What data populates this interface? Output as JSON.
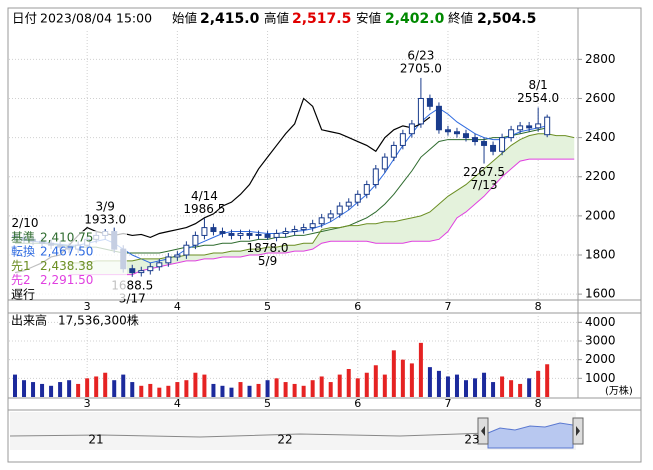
{
  "header": {
    "date_label": "日付",
    "date": "2023/08/04 15:00",
    "open_label": "始値",
    "open": "2,415.0",
    "high_label": "高値",
    "high": "2,517.5",
    "low_label": "安値",
    "low": "2,402.0",
    "close_label": "終値",
    "close": "2,504.5"
  },
  "navigator": {
    "labels": [
      "21",
      "22",
      "23"
    ]
  },
  "chart_data": [
    {
      "type": "candlestick",
      "categories": [
        null,
        null,
        null,
        null,
        null,
        null,
        null,
        null,
        "3",
        null,
        null,
        null,
        null,
        null,
        null,
        null,
        null,
        null,
        "4",
        null,
        null,
        null,
        null,
        null,
        null,
        null,
        null,
        null,
        "5",
        null,
        null,
        null,
        null,
        null,
        null,
        null,
        null,
        null,
        "6",
        null,
        null,
        null,
        null,
        null,
        null,
        null,
        null,
        null,
        "7",
        null,
        null,
        null,
        null,
        null,
        null,
        null,
        null,
        null,
        "8",
        null,
        null,
        null,
        null
      ],
      "open": [
        1900,
        1890,
        1880,
        1870,
        1860,
        1850,
        1840,
        1830,
        1850,
        1880,
        1900,
        1920,
        1830,
        1730,
        1710,
        1720,
        1740,
        1760,
        1790,
        1800,
        1850,
        1900,
        1940,
        1920,
        1910,
        1900,
        1910,
        1900,
        1905,
        1890,
        1910,
        1920,
        1930,
        1940,
        1960,
        1990,
        2010,
        2050,
        2070,
        2110,
        2160,
        2240,
        2300,
        2360,
        2420,
        2470,
        2600,
        2560,
        2440,
        2430,
        2420,
        2400,
        2380,
        2360,
        2330,
        2400,
        2440,
        2460,
        2450,
        2415,
        null,
        null,
        null
      ],
      "high": [
        1920,
        1910,
        1900,
        1890,
        1880,
        1870,
        1860,
        1870,
        1900,
        1920,
        1933,
        1940,
        1850,
        1750,
        1740,
        1760,
        1780,
        1810,
        1820,
        1870,
        1920,
        1986.5,
        1960,
        1940,
        1930,
        1930,
        1930,
        1925,
        1925,
        1930,
        1940,
        1950,
        1960,
        1980,
        2010,
        2030,
        2070,
        2090,
        2130,
        2180,
        2260,
        2320,
        2380,
        2440,
        2490,
        2705,
        2620,
        2580,
        2460,
        2450,
        2440,
        2420,
        2400,
        2380,
        2420,
        2460,
        2480,
        2480,
        2554,
        2517.5,
        null,
        null,
        null
      ],
      "low": [
        1870,
        1860,
        1850,
        1840,
        1830,
        1820,
        1810,
        1810,
        1830,
        1860,
        1880,
        1810,
        1710,
        1688.5,
        1690,
        1700,
        1720,
        1740,
        1770,
        1780,
        1830,
        1880,
        1900,
        1890,
        1880,
        1880,
        1880,
        1880,
        1878,
        1870,
        1890,
        1900,
        1910,
        1920,
        1940,
        1970,
        1990,
        2030,
        2050,
        2090,
        2140,
        2220,
        2280,
        2340,
        2400,
        2450,
        2540,
        2420,
        2410,
        2400,
        2380,
        2360,
        2267.5,
        2310,
        2310,
        2380,
        2420,
        2430,
        2430,
        2402,
        null,
        null,
        null
      ],
      "close": [
        1890,
        1880,
        1870,
        1860,
        1850,
        1840,
        1830,
        1850,
        1880,
        1900,
        1920,
        1830,
        1730,
        1710,
        1720,
        1740,
        1760,
        1790,
        1800,
        1850,
        1900,
        1940,
        1920,
        1910,
        1900,
        1910,
        1900,
        1905,
        1890,
        1910,
        1920,
        1930,
        1940,
        1960,
        1990,
        2010,
        2050,
        2070,
        2110,
        2160,
        2240,
        2300,
        2360,
        2420,
        2470,
        2600,
        2560,
        2440,
        2430,
        2420,
        2400,
        2380,
        2360,
        2330,
        2400,
        2440,
        2460,
        2450,
        2470,
        2504.5,
        null,
        null,
        null
      ],
      "up_color": "#ffffff",
      "down_color": "#1a3c8c",
      "outline_color": "#1a3c8c",
      "series": [
        {
          "name": "基準",
          "last": "2,410.75",
          "color": "#2e6b2e",
          "values": [
            1860,
            1860,
            1860,
            1860,
            1855,
            1850,
            1845,
            1840,
            1840,
            1840,
            1830,
            1820,
            1810,
            1810,
            1810,
            1810,
            1810,
            1820,
            1830,
            1840,
            1840,
            1850,
            1850,
            1860,
            1860,
            1870,
            1870,
            1880,
            1880,
            1890,
            1890,
            1900,
            1900,
            1910,
            1920,
            1930,
            1940,
            1950,
            1970,
            1990,
            2020,
            2060,
            2110,
            2170,
            2230,
            2300,
            2340,
            2380,
            2390,
            2390,
            2390,
            2390,
            2390,
            2400,
            2400,
            2410,
            2420,
            2430,
            2440,
            2450,
            null,
            null,
            null
          ]
        },
        {
          "name": "転換",
          "last": "2,467.50",
          "color": "#2f6be0",
          "values": [
            1880,
            1875,
            1870,
            1865,
            1860,
            1855,
            1850,
            1850,
            1860,
            1870,
            1880,
            1860,
            1830,
            1800,
            1780,
            1760,
            1770,
            1780,
            1800,
            1830,
            1850,
            1870,
            1890,
            1910,
            1920,
            1920,
            1920,
            1915,
            1910,
            1910,
            1915,
            1920,
            1925,
            1935,
            1950,
            1970,
            2000,
            2030,
            2070,
            2110,
            2160,
            2220,
            2290,
            2360,
            2420,
            2480,
            2520,
            2550,
            2520,
            2480,
            2450,
            2420,
            2400,
            2390,
            2390,
            2410,
            2430,
            2440,
            2450,
            2460,
            null,
            null,
            null
          ]
        },
        {
          "name": "先1",
          "last": "2,438.38",
          "color": "#6b8e23",
          "values": [
            null,
            null,
            null,
            null,
            null,
            null,
            1760,
            1760,
            1760,
            1770,
            1770,
            1770,
            1770,
            1770,
            1780,
            1780,
            1780,
            1790,
            1790,
            1800,
            1800,
            1800,
            1810,
            1810,
            1820,
            1820,
            1830,
            1830,
            1840,
            1840,
            1850,
            1850,
            1860,
            1860,
            1930,
            1940,
            1940,
            1950,
            1950,
            1960,
            1960,
            1970,
            1970,
            1980,
            1990,
            2000,
            2020,
            2060,
            2100,
            2130,
            2160,
            2200,
            2240,
            2280,
            2320,
            2360,
            2390,
            2410,
            2420,
            2420,
            2410,
            2410,
            2400
          ]
        },
        {
          "name": "先2",
          "last": "2,291.50",
          "color": "#e040e0",
          "values": [
            null,
            null,
            null,
            null,
            null,
            null,
            1700,
            1700,
            1700,
            1700,
            1700,
            1700,
            1700,
            1700,
            1720,
            1730,
            1740,
            1750,
            1760,
            1770,
            1770,
            1780,
            1780,
            1790,
            1790,
            1790,
            1800,
            1800,
            1810,
            1810,
            1810,
            1820,
            1820,
            1830,
            1860,
            1870,
            1870,
            1870,
            1870,
            1870,
            1860,
            1860,
            1860,
            1860,
            1870,
            1870,
            1870,
            1880,
            1920,
            1990,
            2020,
            2060,
            2100,
            2150,
            2200,
            2240,
            2280,
            2290,
            2290,
            2290,
            2290,
            2290,
            2290
          ]
        },
        {
          "name": "遅行",
          "color": "#000000",
          "values": [
            1710,
            1720,
            1740,
            1760,
            1790,
            1800,
            1850,
            1900,
            1940,
            1920,
            1910,
            1900,
            1910,
            1900,
            1905,
            1890,
            1910,
            1920,
            1930,
            1940,
            1960,
            1990,
            2010,
            2050,
            2070,
            2110,
            2160,
            2240,
            2300,
            2360,
            2420,
            2470,
            2600,
            2560,
            2440,
            2430,
            2420,
            2400,
            2380,
            2360,
            2330,
            2400,
            2440,
            2460,
            2450,
            2470,
            2504.5,
            null,
            null,
            null,
            null,
            null,
            null,
            null,
            null,
            null,
            null,
            null,
            null,
            null,
            null,
            null,
            null
          ]
        }
      ],
      "cloud_color": "#e4f2dc",
      "annotations": [
        {
          "date": "2/10"
        },
        {
          "date": "3/9",
          "price": {
            "value": 1933,
            "label": "1933.0"
          }
        },
        {
          "date": "3/17",
          "price": {
            "value": 1688.5,
            "label": "1688.5"
          }
        },
        {
          "date": "4/14",
          "price": {
            "value": 1986.5,
            "label": "1986.5"
          }
        },
        {
          "date": "5/9",
          "price": {
            "value": 1878,
            "label": "1878.0"
          }
        },
        {
          "date": "6/23",
          "price": {
            "value": 2705,
            "label": "2705.0"
          }
        },
        {
          "date": "7/13",
          "price": {
            "value": 2267.5,
            "label": "2267.5"
          }
        },
        {
          "date": "8/1",
          "price": {
            "value": 2554,
            "label": "2554.0"
          }
        }
      ],
      "ylim": [
        1570,
        2950
      ],
      "yticks": [
        1600,
        1800,
        2000,
        2200,
        2400,
        2600,
        2800
      ],
      "grid": true
    },
    {
      "type": "bar",
      "title": "出来高",
      "subtitle": "17,536,300株",
      "unit_label": "(万株)",
      "categories": [
        null,
        null,
        null,
        null,
        null,
        null,
        null,
        null,
        "3",
        null,
        null,
        null,
        null,
        null,
        null,
        null,
        null,
        null,
        "4",
        null,
        null,
        null,
        null,
        null,
        null,
        null,
        null,
        null,
        "5",
        null,
        null,
        null,
        null,
        null,
        null,
        null,
        null,
        null,
        "6",
        null,
        null,
        null,
        null,
        null,
        null,
        null,
        null,
        null,
        "7",
        null,
        null,
        null,
        null,
        null,
        null,
        null,
        null,
        null,
        "8",
        null,
        null,
        null,
        null
      ],
      "values": [
        1200,
        900,
        800,
        700,
        600,
        800,
        900,
        700,
        1000,
        1100,
        1300,
        900,
        1200,
        800,
        600,
        700,
        500,
        600,
        800,
        900,
        1300,
        1200,
        700,
        600,
        500,
        800,
        600,
        700,
        900,
        1000,
        800,
        700,
        600,
        900,
        1100,
        800,
        1200,
        1500,
        1000,
        1300,
        1700,
        1200,
        2500,
        2000,
        1800,
        2900,
        1600,
        1400,
        1100,
        1200,
        900,
        1000,
        1300,
        800,
        1100,
        900,
        700,
        1000,
        1400,
        1754,
        null,
        null,
        null
      ],
      "up_color": "#e52222",
      "down_color": "#1c2a9c",
      "ylim": [
        0,
        4500
      ],
      "yticks": [
        1000,
        2000,
        3000,
        4000
      ],
      "grid": true
    }
  ]
}
